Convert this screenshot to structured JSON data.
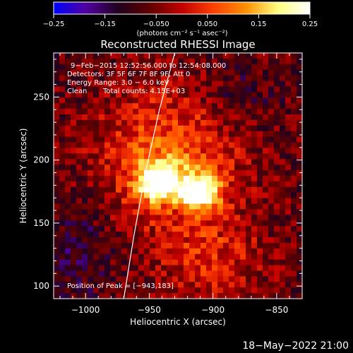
{
  "chart_data": {
    "type": "heatmap",
    "title": "Reconstructed RHESSI Image",
    "xlabel": "Heliocentric X (arcsec)",
    "ylabel": "Heliocentric Y (arcsec)",
    "xlim": [
      -1025,
      -830
    ],
    "ylim": [
      90,
      285
    ],
    "xticks": [
      -1000,
      -950,
      -900,
      -850
    ],
    "xtick_labels": [
      "−1000",
      "−950",
      "−900",
      "−850"
    ],
    "yticks": [
      100,
      150,
      200,
      250
    ],
    "ytick_labels": [
      "100",
      "150",
      "200",
      "250"
    ],
    "colorbar": {
      "range": [
        -0.25,
        0.25
      ],
      "ticks": [
        -0.25,
        -0.15,
        -0.05,
        0.05,
        0.15,
        0.25
      ],
      "tick_labels": [
        "−0.25",
        "−0.15",
        "−0.050",
        "0.050",
        "0.15",
        "0.25"
      ],
      "label": "(photons cm⁻² s⁻¹ asec⁻²)",
      "colormap": [
        "#0000ff",
        "#5000a0",
        "#200020",
        "#600000",
        "#c00000",
        "#ff4000",
        "#ff9000",
        "#ffff80",
        "#ffffff"
      ]
    },
    "annotations": [
      "9−Feb−2015 12:52:56.000 to 12:54:08.000",
      "Detectors: 3F 5F 6F 7F 8F 9F, Att 0",
      "Energy Range: 3.0 − 6.0 keV",
      "Clean",
      "Total counts: 4.15E+03"
    ],
    "peak_label": "Position of Peak = [−943,183]",
    "peaks": [
      {
        "x": -943,
        "y": 183,
        "value": 0.25
      },
      {
        "x": -910,
        "y": 175,
        "value": 0.22
      }
    ],
    "limb_points": [
      [
        -970,
        90
      ],
      [
        -962,
        140
      ],
      [
        -953,
        190
      ],
      [
        -942,
        240
      ],
      [
        -930,
        285
      ]
    ]
  },
  "footer_date": "18−May−2022 21:00"
}
